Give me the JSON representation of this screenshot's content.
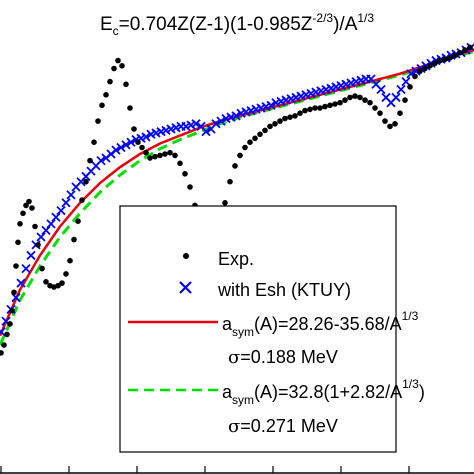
{
  "chart_data": {
    "type": "scatter",
    "title": {
      "prefix": "E",
      "prefix_sub": "c",
      "part1": "=0.704Z(Z-1)(1-0.985Z",
      "sup1": "-2/3",
      "part2": ")/A",
      "sup2": "1/3"
    },
    "xlabel": "",
    "ylabel": "",
    "grid": false,
    "legend_position": "lower-right",
    "series": [
      {
        "name": "Exp.",
        "marker": "dot",
        "color": "#000000",
        "x": [
          1,
          4,
          7,
          10,
          12,
          14,
          16,
          18,
          20,
          23,
          26,
          29,
          32,
          35,
          38,
          42,
          46,
          50,
          54,
          58,
          62,
          66,
          70,
          74,
          78,
          82,
          86,
          90,
          94,
          98,
          102,
          106,
          110,
          114,
          118,
          122,
          126,
          130,
          134,
          138,
          142,
          146,
          150,
          155,
          160,
          165,
          170,
          175,
          180,
          185,
          190,
          195,
          200,
          205,
          210,
          215,
          220,
          225,
          230,
          235,
          240,
          245,
          250,
          255,
          260,
          265,
          270,
          275,
          280,
          285,
          290,
          295,
          300,
          305,
          310,
          315,
          320,
          325,
          330,
          335,
          340,
          345,
          350,
          355,
          360,
          365,
          370,
          375,
          380,
          385,
          390,
          395,
          400,
          405,
          410,
          415,
          420,
          425,
          430,
          435,
          440,
          445,
          450,
          455,
          460,
          465,
          470
        ],
        "y": [
          0.92,
          0.98,
          1.06,
          1.14,
          1.24,
          1.38,
          1.58,
          1.76,
          1.9,
          1.98,
          2.04,
          2.07,
          2.02,
          1.88,
          1.74,
          1.56,
          1.46,
          1.43,
          1.42,
          1.43,
          1.45,
          1.52,
          1.62,
          1.78,
          1.92,
          2.08,
          2.22,
          2.38,
          2.52,
          2.68,
          2.8,
          2.88,
          2.98,
          3.08,
          3.14,
          3.1,
          2.96,
          2.78,
          2.62,
          2.52,
          2.48,
          2.44,
          2.4,
          2.41,
          2.42,
          2.43,
          2.44,
          2.42,
          2.36,
          2.28,
          2.18,
          2.04,
          1.92,
          1.82,
          1.78,
          1.82,
          1.92,
          2.06,
          2.22,
          2.34,
          2.42,
          2.48,
          2.52,
          2.55,
          2.58,
          2.61,
          2.64,
          2.66,
          2.68,
          2.7,
          2.71,
          2.72,
          2.74,
          2.76,
          2.77,
          2.78,
          2.78,
          2.79,
          2.8,
          2.81,
          2.82,
          2.84,
          2.86,
          2.87,
          2.86,
          2.84,
          2.82,
          2.78,
          2.74,
          2.68,
          2.64,
          2.66,
          2.74,
          2.84,
          2.94,
          3.02,
          3.06,
          3.08,
          3.1,
          3.12,
          3.14,
          3.15,
          3.16,
          3.18,
          3.2,
          3.22,
          3.24
        ]
      },
      {
        "name": "with Esh (KTUY)",
        "marker": "x",
        "color": "#0000ff",
        "x": [
          1,
          6,
          11,
          16,
          21,
          26,
          31,
          36,
          41,
          46,
          51,
          56,
          61,
          66,
          71,
          76,
          81,
          86,
          91,
          96,
          101,
          106,
          111,
          116,
          121,
          126,
          131,
          136,
          141,
          146,
          151,
          156,
          161,
          166,
          171,
          176,
          181,
          186,
          191,
          196,
          201,
          206,
          211,
          216,
          221,
          226,
          231,
          236,
          241,
          246,
          251,
          256,
          261,
          266,
          271,
          276,
          281,
          286,
          291,
          296,
          301,
          306,
          311,
          316,
          321,
          326,
          331,
          336,
          341,
          346,
          351,
          356,
          361,
          366,
          371,
          376,
          381,
          386,
          391,
          396,
          401,
          406,
          411,
          416,
          421,
          426,
          431,
          436,
          441,
          446,
          451,
          456,
          461,
          466,
          471
        ],
        "y": [
          1.08,
          1.16,
          1.25,
          1.34,
          1.45,
          1.56,
          1.66,
          1.74,
          1.8,
          1.85,
          1.9,
          1.95,
          2.0,
          2.06,
          2.12,
          2.18,
          2.22,
          2.26,
          2.3,
          2.34,
          2.38,
          2.4,
          2.43,
          2.46,
          2.48,
          2.5,
          2.52,
          2.54,
          2.55,
          2.56,
          2.58,
          2.59,
          2.6,
          2.61,
          2.62,
          2.63,
          2.64,
          2.64,
          2.65,
          2.66,
          2.64,
          2.6,
          2.62,
          2.66,
          2.68,
          2.7,
          2.71,
          2.72,
          2.74,
          2.75,
          2.76,
          2.77,
          2.78,
          2.79,
          2.8,
          2.82,
          2.83,
          2.84,
          2.85,
          2.86,
          2.87,
          2.88,
          2.89,
          2.9,
          2.91,
          2.92,
          2.93,
          2.94,
          2.95,
          2.96,
          2.97,
          2.98,
          2.99,
          3.0,
          3.0,
          2.96,
          2.92,
          2.86,
          2.82,
          2.86,
          2.92,
          2.98,
          3.04,
          3.06,
          3.08,
          3.1,
          3.12,
          3.14,
          3.15,
          3.16,
          3.18,
          3.19,
          3.2,
          3.22,
          3.24
        ]
      },
      {
        "name": "a_sym(A)=28.26-35.68/A^1/3",
        "line": "solid",
        "color": "#e8000b",
        "x": [
          0,
          20,
          40,
          60,
          80,
          100,
          120,
          140,
          160,
          180,
          200,
          220,
          240,
          260,
          280,
          300,
          320,
          340,
          360,
          380,
          400,
          420,
          440,
          460,
          474
        ],
        "y": [
          1.05,
          1.4,
          1.66,
          1.88,
          2.06,
          2.21,
          2.33,
          2.43,
          2.51,
          2.57,
          2.63,
          2.68,
          2.72,
          2.76,
          2.8,
          2.84,
          2.88,
          2.92,
          2.96,
          3.0,
          3.04,
          3.09,
          3.14,
          3.19,
          3.22
        ]
      },
      {
        "name": "a_sym(A)=32.8(1+2.82/A^1/3)",
        "line": "dashed",
        "color": "#00e000",
        "x": [
          0,
          20,
          40,
          60,
          80,
          100,
          120,
          140,
          160,
          180,
          200,
          220,
          240,
          260,
          280,
          300,
          320,
          340,
          360,
          380,
          400,
          420,
          440,
          460,
          474
        ],
        "y": [
          0.98,
          1.32,
          1.58,
          1.8,
          1.98,
          2.14,
          2.27,
          2.38,
          2.47,
          2.54,
          2.6,
          2.66,
          2.71,
          2.75,
          2.79,
          2.83,
          2.87,
          2.91,
          2.95,
          2.99,
          3.03,
          3.08,
          3.13,
          3.18,
          3.21
        ]
      }
    ],
    "xlim": [
      0,
      474
    ],
    "ylim": [
      0,
      3.6
    ]
  },
  "legend": {
    "entries": [
      {
        "key": "exp",
        "label": "Exp.",
        "symbol": "dot",
        "color": "#000000"
      },
      {
        "key": "ktuy",
        "label": "with Esh (KTUY)",
        "symbol": "x",
        "color": "#0000ff"
      },
      {
        "key": "red",
        "symbol": "solid-line",
        "color": "#e8000b",
        "a": "a",
        "sub": "sym",
        "main": "(A)=28.26-35.68/A",
        "sup": "1/3",
        "sigma": "σ",
        "sigma_value": "=0.188 MeV"
      },
      {
        "key": "green",
        "symbol": "dashed-line",
        "color": "#00e000",
        "a": "a",
        "sub": "sym",
        "main": "(A)=32.8(1+2.82/A",
        "sup": "1/3",
        "tail": ")",
        "sigma": "σ",
        "sigma_value": "=0.271 MeV"
      }
    ]
  }
}
